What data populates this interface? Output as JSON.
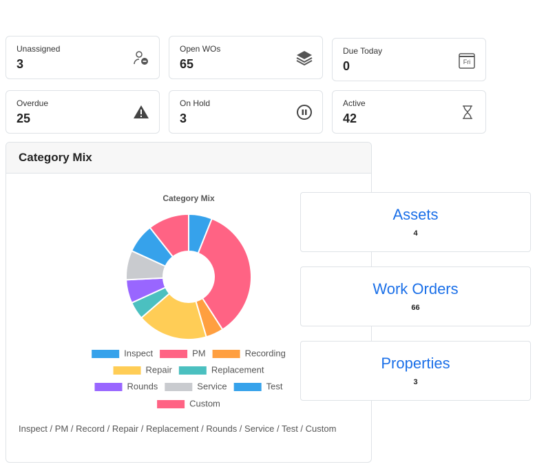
{
  "stats": [
    {
      "label": "Unassigned",
      "value": 3
    },
    {
      "label": "Open WOs",
      "value": 65
    },
    {
      "label": "Due Today",
      "value": 0,
      "icon_text": "Fri"
    },
    {
      "label": "Overdue",
      "value": 25
    },
    {
      "label": "On Hold",
      "value": 3
    },
    {
      "label": "Active",
      "value": 42
    }
  ],
  "panel": {
    "title": "Category Mix",
    "footer": "Inspect / PM / Record / Repair / Replacement / Rounds / Service / Test / Custom"
  },
  "chart_data": {
    "type": "doughnut",
    "title": "Category Mix",
    "categories": [
      "Inspect",
      "PM",
      "Recording",
      "Repair",
      "Replacement",
      "Rounds",
      "Service",
      "Test",
      "Custom"
    ],
    "values": [
      4,
      23,
      3,
      12,
      3,
      4,
      5,
      5,
      7
    ],
    "colors": [
      "#36a2eb",
      "#ff6384",
      "#ff9f40",
      "#ffcd56",
      "#4bc0c0",
      "#9966ff",
      "#c9cbcf",
      "#36a2eb",
      "#ff6384"
    ]
  },
  "links": [
    {
      "title": "Assets",
      "count": 4
    },
    {
      "title": "Work Orders",
      "count": 66
    },
    {
      "title": "Properties",
      "count": 3
    }
  ]
}
